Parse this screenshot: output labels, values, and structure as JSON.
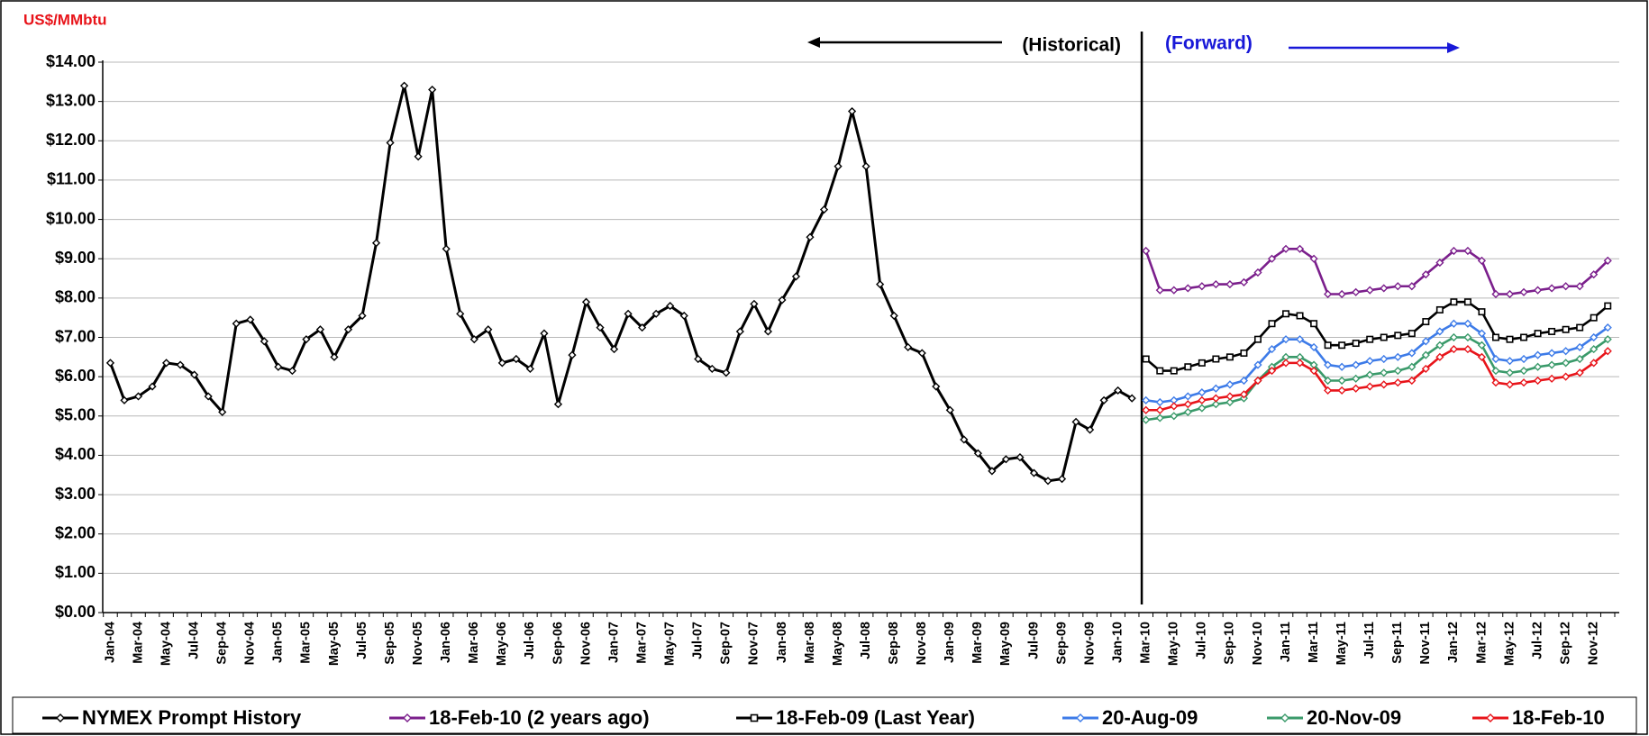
{
  "chart_data": {
    "type": "line",
    "y_unit": "US$/MMbtu",
    "annotations": [
      "(Historical)",
      "(Forward)"
    ],
    "categories": [
      "Jan-04",
      null,
      "Mar-04",
      null,
      "May-04",
      null,
      "Jul-04",
      null,
      "Sep-04",
      null,
      "Nov-04",
      null,
      "Jan-05",
      null,
      "Mar-05",
      null,
      "May-05",
      null,
      "Jul-05",
      null,
      "Sep-05",
      null,
      "Nov-05",
      null,
      "Jan-06",
      null,
      "Mar-06",
      null,
      "May-06",
      null,
      "Jul-06",
      null,
      "Sep-06",
      null,
      "Nov-06",
      null,
      "Jan-07",
      null,
      "Mar-07",
      null,
      "May-07",
      null,
      "Jul-07",
      null,
      "Sep-07",
      null,
      "Nov-07",
      null,
      "Jan-08",
      null,
      "Mar-08",
      null,
      "May-08",
      null,
      "Jul-08",
      null,
      "Sep-08",
      null,
      "Nov-08",
      null,
      "Jan-09",
      null,
      "Mar-09",
      null,
      "May-09",
      null,
      "Jul-09",
      null,
      "Sep-09",
      null,
      "Nov-09",
      null,
      "Jan-10",
      null,
      "Mar-10",
      null,
      "May-10",
      null,
      "Jul-10",
      null,
      "Sep-10",
      null,
      "Nov-10",
      null,
      "Jan-11",
      null,
      "Mar-11",
      null,
      "May-11",
      null,
      "Jul-11",
      null,
      "Sep-11",
      null,
      "Nov-11",
      null,
      "Jan-12",
      null,
      "Mar-12",
      null,
      "May-12",
      null,
      "Jul-12",
      null,
      "Sep-12",
      null,
      "Nov-12",
      null
    ],
    "series": [
      {
        "name": "NYMEX Prompt History",
        "color": "#000000",
        "marker": "diamond",
        "values": [
          6.35,
          5.4,
          5.5,
          5.75,
          6.35,
          6.3,
          6.05,
          5.5,
          5.1,
          7.35,
          7.45,
          6.9,
          6.25,
          6.15,
          6.95,
          7.2,
          6.5,
          7.2,
          7.55,
          9.4,
          11.95,
          13.4,
          11.6,
          13.3,
          9.25,
          7.6,
          6.95,
          7.2,
          6.35,
          6.45,
          6.2,
          7.1,
          5.3,
          6.55,
          7.9,
          7.25,
          6.7,
          7.6,
          7.25,
          7.6,
          7.8,
          7.55,
          6.45,
          6.2,
          6.1,
          7.15,
          7.85,
          7.15,
          7.95,
          8.55,
          9.55,
          10.25,
          11.35,
          12.75,
          11.35,
          8.35,
          7.55,
          6.75,
          6.6,
          5.75,
          5.15,
          4.4,
          4.05,
          3.6,
          3.9,
          3.95,
          3.55,
          3.35,
          3.4,
          4.85,
          4.65,
          5.4,
          5.65,
          5.45,
          null,
          null,
          null,
          null,
          null,
          null,
          null,
          null,
          null,
          null,
          null,
          null,
          null,
          null,
          null,
          null,
          null,
          null,
          null,
          null,
          null,
          null,
          null,
          null,
          null,
          null,
          null,
          null,
          null,
          null,
          null,
          null,
          null,
          null
        ]
      },
      {
        "name": "18-Feb-10 (2 years ago)",
        "color": "#7b1f8c",
        "marker": "diamond",
        "values": [
          null,
          null,
          null,
          null,
          null,
          null,
          null,
          null,
          null,
          null,
          null,
          null,
          null,
          null,
          null,
          null,
          null,
          null,
          null,
          null,
          null,
          null,
          null,
          null,
          null,
          null,
          null,
          null,
          null,
          null,
          null,
          null,
          null,
          null,
          null,
          null,
          null,
          null,
          null,
          null,
          null,
          null,
          null,
          null,
          null,
          null,
          null,
          null,
          null,
          null,
          null,
          null,
          null,
          null,
          null,
          null,
          null,
          null,
          null,
          null,
          null,
          null,
          null,
          null,
          null,
          null,
          null,
          null,
          null,
          null,
          null,
          null,
          null,
          null,
          9.2,
          8.2,
          8.2,
          8.25,
          8.3,
          8.35,
          8.35,
          8.4,
          8.65,
          9.0,
          9.25,
          9.25,
          9.0,
          8.1,
          8.1,
          8.15,
          8.2,
          8.25,
          8.3,
          8.3,
          8.6,
          8.9,
          9.2,
          9.2,
          8.95,
          8.1,
          8.1,
          8.15,
          8.2,
          8.25,
          8.3,
          8.3,
          8.6,
          8.95
        ]
      },
      {
        "name": "18-Feb-09 (Last Year)",
        "color": "#000000",
        "marker": "square",
        "values": [
          null,
          null,
          null,
          null,
          null,
          null,
          null,
          null,
          null,
          null,
          null,
          null,
          null,
          null,
          null,
          null,
          null,
          null,
          null,
          null,
          null,
          null,
          null,
          null,
          null,
          null,
          null,
          null,
          null,
          null,
          null,
          null,
          null,
          null,
          null,
          null,
          null,
          null,
          null,
          null,
          null,
          null,
          null,
          null,
          null,
          null,
          null,
          null,
          null,
          null,
          null,
          null,
          null,
          null,
          null,
          null,
          null,
          null,
          null,
          null,
          null,
          null,
          null,
          null,
          null,
          null,
          null,
          null,
          null,
          null,
          null,
          null,
          null,
          null,
          6.45,
          6.15,
          6.15,
          6.25,
          6.35,
          6.45,
          6.5,
          6.6,
          6.95,
          7.35,
          7.6,
          7.55,
          7.35,
          6.8,
          6.8,
          6.85,
          6.95,
          7.0,
          7.05,
          7.1,
          7.4,
          7.7,
          7.9,
          7.9,
          7.65,
          7.0,
          6.95,
          7.0,
          7.1,
          7.15,
          7.2,
          7.25,
          7.5,
          7.8
        ]
      },
      {
        "name": "20-Aug-09",
        "color": "#3d7be8",
        "marker": "diamond",
        "values": [
          null,
          null,
          null,
          null,
          null,
          null,
          null,
          null,
          null,
          null,
          null,
          null,
          null,
          null,
          null,
          null,
          null,
          null,
          null,
          null,
          null,
          null,
          null,
          null,
          null,
          null,
          null,
          null,
          null,
          null,
          null,
          null,
          null,
          null,
          null,
          null,
          null,
          null,
          null,
          null,
          null,
          null,
          null,
          null,
          null,
          null,
          null,
          null,
          null,
          null,
          null,
          null,
          null,
          null,
          null,
          null,
          null,
          null,
          null,
          null,
          null,
          null,
          null,
          null,
          null,
          null,
          null,
          null,
          null,
          null,
          null,
          null,
          null,
          null,
          5.4,
          5.35,
          5.4,
          5.5,
          5.6,
          5.7,
          5.8,
          5.9,
          6.3,
          6.7,
          6.95,
          6.95,
          6.75,
          6.3,
          6.25,
          6.3,
          6.4,
          6.45,
          6.5,
          6.6,
          6.9,
          7.15,
          7.35,
          7.35,
          7.1,
          6.45,
          6.4,
          6.45,
          6.55,
          6.6,
          6.65,
          6.75,
          7.0,
          7.25
        ]
      },
      {
        "name": "20-Nov-09",
        "color": "#3a9a6a",
        "marker": "diamond",
        "values": [
          null,
          null,
          null,
          null,
          null,
          null,
          null,
          null,
          null,
          null,
          null,
          null,
          null,
          null,
          null,
          null,
          null,
          null,
          null,
          null,
          null,
          null,
          null,
          null,
          null,
          null,
          null,
          null,
          null,
          null,
          null,
          null,
          null,
          null,
          null,
          null,
          null,
          null,
          null,
          null,
          null,
          null,
          null,
          null,
          null,
          null,
          null,
          null,
          null,
          null,
          null,
          null,
          null,
          null,
          null,
          null,
          null,
          null,
          null,
          null,
          null,
          null,
          null,
          null,
          null,
          null,
          null,
          null,
          null,
          null,
          null,
          null,
          null,
          null,
          4.9,
          4.95,
          5.0,
          5.1,
          5.2,
          5.3,
          5.35,
          5.45,
          5.9,
          6.25,
          6.5,
          6.5,
          6.3,
          5.9,
          5.9,
          5.95,
          6.05,
          6.1,
          6.15,
          6.25,
          6.55,
          6.8,
          7.0,
          7.0,
          6.8,
          6.15,
          6.1,
          6.15,
          6.25,
          6.3,
          6.35,
          6.45,
          6.7,
          6.95
        ]
      },
      {
        "name": "18-Feb-10",
        "color": "#e8141a",
        "marker": "diamond",
        "values": [
          null,
          null,
          null,
          null,
          null,
          null,
          null,
          null,
          null,
          null,
          null,
          null,
          null,
          null,
          null,
          null,
          null,
          null,
          null,
          null,
          null,
          null,
          null,
          null,
          null,
          null,
          null,
          null,
          null,
          null,
          null,
          null,
          null,
          null,
          null,
          null,
          null,
          null,
          null,
          null,
          null,
          null,
          null,
          null,
          null,
          null,
          null,
          null,
          null,
          null,
          null,
          null,
          null,
          null,
          null,
          null,
          null,
          null,
          null,
          null,
          null,
          null,
          null,
          null,
          null,
          null,
          null,
          null,
          null,
          null,
          null,
          null,
          null,
          null,
          5.15,
          5.15,
          5.25,
          5.3,
          5.4,
          5.45,
          5.5,
          5.55,
          5.9,
          6.15,
          6.35,
          6.35,
          6.15,
          5.65,
          5.65,
          5.7,
          5.75,
          5.8,
          5.85,
          5.9,
          6.2,
          6.5,
          6.7,
          6.7,
          6.5,
          5.85,
          5.8,
          5.85,
          5.9,
          5.95,
          6.0,
          6.1,
          6.35,
          6.65
        ]
      }
    ],
    "ylim": [
      0,
      14
    ],
    "yticks": [
      {
        "value": 0,
        "label": "$0.00"
      },
      {
        "value": 1,
        "label": "$1.00"
      },
      {
        "value": 2,
        "label": "$2.00"
      },
      {
        "value": 3,
        "label": "$3.00"
      },
      {
        "value": 4,
        "label": "$4.00"
      },
      {
        "value": 5,
        "label": "$5.00"
      },
      {
        "value": 6,
        "label": "$6.00"
      },
      {
        "value": 7,
        "label": "$7.00"
      },
      {
        "value": 8,
        "label": "$8.00"
      },
      {
        "value": 9,
        "label": "$9.00"
      },
      {
        "value": 10,
        "label": "$10.00"
      },
      {
        "value": 11,
        "label": "$11.00"
      },
      {
        "value": 12,
        "label": "$12.00"
      },
      {
        "value": 13,
        "label": "$13.00"
      },
      {
        "value": 14,
        "label": "$14.00"
      }
    ],
    "grid": true
  }
}
